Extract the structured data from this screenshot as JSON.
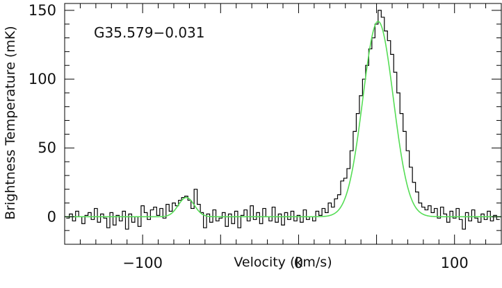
{
  "chart_data": {
    "type": "line",
    "title": "",
    "annotation": "G35.579−0.031",
    "xlabel": "Velocity (km/s)",
    "ylabel": "Brightness Temperature (mK)",
    "xlim": [
      -150,
      130
    ],
    "ylim": [
      -20,
      155
    ],
    "xticks": [
      -100,
      0,
      100
    ],
    "xtick_labels": [
      "−100",
      "0",
      "100"
    ],
    "yticks": [
      0,
      50,
      100,
      150
    ],
    "ytick_labels": [
      "0",
      "50",
      "100",
      "150"
    ],
    "grid": false,
    "legend": "none",
    "series": [
      {
        "style": "histogram-step",
        "color": "#000000",
        "points": [
          [
            -148,
            -1
          ],
          [
            -146,
            2
          ],
          [
            -144,
            -3
          ],
          [
            -142,
            4
          ],
          [
            -140,
            0
          ],
          [
            -138,
            -5
          ],
          [
            -136,
            1
          ],
          [
            -134,
            3
          ],
          [
            -132,
            -2
          ],
          [
            -130,
            6
          ],
          [
            -128,
            -4
          ],
          [
            -126,
            2
          ],
          [
            -124,
            -1
          ],
          [
            -122,
            -8
          ],
          [
            -120,
            3
          ],
          [
            -118,
            -6
          ],
          [
            -116,
            1
          ],
          [
            -114,
            -3
          ],
          [
            -112,
            4
          ],
          [
            -110,
            -9
          ],
          [
            -108,
            2
          ],
          [
            -106,
            -4
          ],
          [
            -104,
            0
          ],
          [
            -102,
            -7
          ],
          [
            -100,
            8
          ],
          [
            -98,
            3
          ],
          [
            -96,
            -2
          ],
          [
            -94,
            5
          ],
          [
            -92,
            7
          ],
          [
            -90,
            1
          ],
          [
            -88,
            6
          ],
          [
            -86,
            -1
          ],
          [
            -84,
            9
          ],
          [
            -82,
            4
          ],
          [
            -80,
            10
          ],
          [
            -78,
            8
          ],
          [
            -76,
            12
          ],
          [
            -74,
            14
          ],
          [
            -72,
            15
          ],
          [
            -70,
            12
          ],
          [
            -68,
            6
          ],
          [
            -66,
            20
          ],
          [
            -64,
            9
          ],
          [
            -62,
            3
          ],
          [
            -60,
            -8
          ],
          [
            -58,
            2
          ],
          [
            -56,
            -4
          ],
          [
            -54,
            5
          ],
          [
            -52,
            -3
          ],
          [
            -50,
            -1
          ],
          [
            -48,
            3
          ],
          [
            -46,
            -7
          ],
          [
            -44,
            2
          ],
          [
            -42,
            -5
          ],
          [
            -40,
            4
          ],
          [
            -38,
            -8
          ],
          [
            -36,
            1
          ],
          [
            -34,
            5
          ],
          [
            -32,
            -3
          ],
          [
            -30,
            8
          ],
          [
            -28,
            -2
          ],
          [
            -26,
            3
          ],
          [
            -24,
            -5
          ],
          [
            -22,
            6
          ],
          [
            -20,
            0
          ],
          [
            -18,
            -3
          ],
          [
            -16,
            7
          ],
          [
            -14,
            -4
          ],
          [
            -12,
            2
          ],
          [
            -10,
            -6
          ],
          [
            -8,
            3
          ],
          [
            -6,
            -2
          ],
          [
            -4,
            4
          ],
          [
            -2,
            -3
          ],
          [
            0,
            1
          ],
          [
            2,
            -4
          ],
          [
            4,
            5
          ],
          [
            6,
            -2
          ],
          [
            8,
            0
          ],
          [
            10,
            -3
          ],
          [
            12,
            4
          ],
          [
            14,
            1
          ],
          [
            16,
            6
          ],
          [
            18,
            3
          ],
          [
            20,
            10
          ],
          [
            22,
            7
          ],
          [
            24,
            13
          ],
          [
            26,
            16
          ],
          [
            28,
            26
          ],
          [
            30,
            28
          ],
          [
            32,
            35
          ],
          [
            34,
            48
          ],
          [
            36,
            62
          ],
          [
            38,
            75
          ],
          [
            40,
            88
          ],
          [
            42,
            100
          ],
          [
            44,
            110
          ],
          [
            46,
            122
          ],
          [
            48,
            130
          ],
          [
            50,
            140
          ],
          [
            52,
            150
          ],
          [
            54,
            145
          ],
          [
            56,
            135
          ],
          [
            58,
            128
          ],
          [
            60,
            118
          ],
          [
            62,
            105
          ],
          [
            64,
            90
          ],
          [
            66,
            75
          ],
          [
            68,
            62
          ],
          [
            70,
            48
          ],
          [
            72,
            36
          ],
          [
            74,
            25
          ],
          [
            76,
            18
          ],
          [
            78,
            10
          ],
          [
            80,
            7
          ],
          [
            82,
            5
          ],
          [
            84,
            8
          ],
          [
            86,
            3
          ],
          [
            88,
            6
          ],
          [
            90,
            -1
          ],
          [
            92,
            7
          ],
          [
            94,
            2
          ],
          [
            96,
            -4
          ],
          [
            98,
            4
          ],
          [
            100,
            -1
          ],
          [
            102,
            6
          ],
          [
            104,
            -2
          ],
          [
            106,
            -9
          ],
          [
            108,
            3
          ],
          [
            110,
            -3
          ],
          [
            112,
            5
          ],
          [
            114,
            -1
          ],
          [
            116,
            -4
          ],
          [
            118,
            2
          ],
          [
            120,
            -2
          ],
          [
            122,
            4
          ],
          [
            124,
            -3
          ],
          [
            126,
            1
          ],
          [
            128,
            -2
          ]
        ]
      },
      {
        "style": "gaussian-fit",
        "color": "#55dd55",
        "components": [
          {
            "amplitude": 14,
            "center": -72,
            "fwhm": 12
          },
          {
            "amplitude": 142,
            "center": 51,
            "fwhm": 23
          }
        ]
      }
    ]
  }
}
